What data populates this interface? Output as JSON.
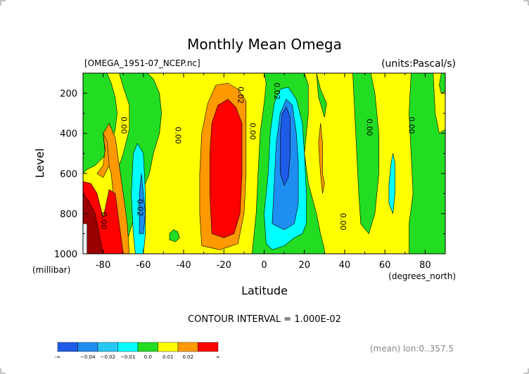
{
  "chart_data": {
    "type": "heatmap",
    "title": "Monthly Mean Omega",
    "file_label": "[OMEGA_1951-07_NCEP.nc]",
    "units_label": "(units:Pascal/s)",
    "xlabel": "Latitude",
    "x_units": "(degrees_north)",
    "ylabel": "Level",
    "y_units": "(millibar)",
    "xlim": [
      -90,
      90
    ],
    "ylim": [
      1000,
      100
    ],
    "x_ticks": [
      "-80",
      "-60",
      "-40",
      "-20",
      "0",
      "20",
      "40",
      "60",
      "80"
    ],
    "x_tick_values": [
      -80,
      -60,
      -40,
      -20,
      0,
      20,
      40,
      60,
      80
    ],
    "y_ticks": [
      "200",
      "400",
      "600",
      "800",
      "1000"
    ],
    "y_tick_values": [
      200,
      400,
      600,
      800,
      1000
    ],
    "contour_interval_label": "CONTOUR INTERVAL = 1.000E-02",
    "mean_label": "(mean) lon:0..357.5",
    "contour_labels": [
      "0.00",
      "0.00",
      "0.00",
      "0.02",
      "0.02",
      "0.00",
      "0.00",
      "0.00",
      "0.00",
      "0.02"
    ],
    "colorbar": {
      "ticks": [
        "-∞",
        "−0.04",
        "−0.02",
        "−0.01",
        "0.0",
        "0.01",
        "0.02",
        "∞"
      ],
      "colors": [
        "#1e5be6",
        "#1e8ef0",
        "#28c8f5",
        "#00ffff",
        "#22dd22",
        "#ffff00",
        "#ff9900",
        "#ff0000"
      ]
    }
  }
}
